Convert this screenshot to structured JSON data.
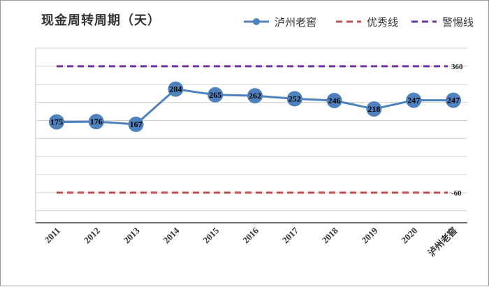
{
  "chart_data": {
    "type": "line",
    "title": "现金周转周期（天）",
    "categories": [
      "2011",
      "2012",
      "2013",
      "2014",
      "2015",
      "2016",
      "2017",
      "2018",
      "2019",
      "2020",
      "泸州老窖"
    ],
    "series": [
      {
        "name": "泸州老窖",
        "values": [
          175,
          176,
          167,
          284,
          265,
          262,
          252,
          246,
          218,
          247,
          247
        ],
        "color": "#4f81bd",
        "style": "solid-markers"
      }
    ],
    "reference_lines": [
      {
        "name": "优秀线",
        "value": -60,
        "label": "-60",
        "color": "#c0504d",
        "style": "dashed"
      },
      {
        "name": "警惕线",
        "value": 360,
        "label": "360",
        "color": "#7030a0",
        "style": "dashed"
      }
    ],
    "ylim": [
      -160,
      420
    ],
    "y_gridlines": [
      -120,
      -60,
      0,
      60,
      120,
      180,
      240,
      300,
      360,
      420
    ],
    "grid": "horizontal",
    "legend_position": "top-right",
    "xlabel": "",
    "ylabel": ""
  }
}
